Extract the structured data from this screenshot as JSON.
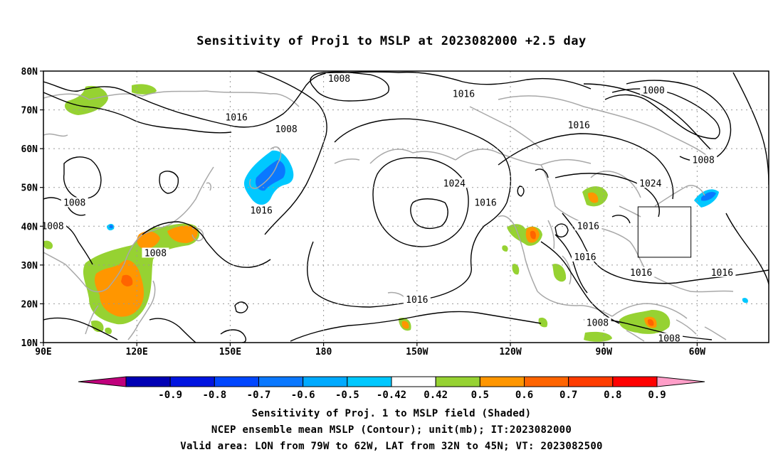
{
  "title": "Sensitivity of Proj1 to MSLP at 2023082000 +2.5 day",
  "map": {
    "lat_labels": [
      "10N",
      "20N",
      "30N",
      "40N",
      "50N",
      "60N",
      "70N",
      "80N"
    ],
    "lon_labels": [
      "90E",
      "120E",
      "150E",
      "180",
      "150W",
      "120W",
      "90W",
      "60W"
    ],
    "lon_range": [
      90,
      323
    ],
    "lat_range": [
      10,
      80
    ],
    "grid": "dotted"
  },
  "contour_labels": [
    {
      "text": "1008",
      "lon": 100,
      "lat": 46,
      "label_id": "l1"
    },
    {
      "text": "1016",
      "lon": 152,
      "lat": 68,
      "label_id": "l2"
    },
    {
      "text": "1008",
      "lon": 168,
      "lat": 65,
      "label_id": "l3"
    },
    {
      "text": "1008",
      "lon": 185,
      "lat": 78,
      "label_id": "l4"
    },
    {
      "text": "1016",
      "lon": 225,
      "lat": 74,
      "label_id": "l5"
    },
    {
      "text": "1016",
      "lon": 262,
      "lat": 66,
      "label_id": "l6"
    },
    {
      "text": "1000",
      "lon": 286,
      "lat": 75,
      "label_id": "l7"
    },
    {
      "text": "1008",
      "lon": 302,
      "lat": 57,
      "label_id": "l8"
    },
    {
      "text": "1024",
      "lon": 222,
      "lat": 51,
      "label_id": "l9"
    },
    {
      "text": "1016",
      "lon": 232,
      "lat": 46,
      "label_id": "l10"
    },
    {
      "text": "1024",
      "lon": 285,
      "lat": 51,
      "label_id": "l11"
    },
    {
      "text": "1016",
      "lon": 265,
      "lat": 40,
      "label_id": "l12"
    },
    {
      "text": "1016",
      "lon": 264,
      "lat": 32,
      "label_id": "l13"
    },
    {
      "text": "1016",
      "lon": 282,
      "lat": 28,
      "label_id": "l14"
    },
    {
      "text": "1016",
      "lon": 308,
      "lat": 28,
      "label_id": "l15"
    },
    {
      "text": "1016",
      "lon": 160,
      "lat": 44,
      "label_id": "l16"
    },
    {
      "text": "1016",
      "lon": 210,
      "lat": 21,
      "label_id": "l17"
    },
    {
      "text": "1008",
      "lon": 93,
      "lat": 40,
      "label_id": "l18"
    },
    {
      "text": "1008",
      "lon": 126,
      "lat": 33,
      "label_id": "l19"
    },
    {
      "text": "1008",
      "lon": 268,
      "lat": 15,
      "label_id": "l20"
    },
    {
      "text": "1008",
      "lon": 291,
      "lat": 11,
      "label_id": "l21"
    }
  ],
  "valid_area": {
    "lon": [
      -79,
      -62
    ],
    "lat": [
      32,
      45
    ]
  },
  "colorbar": {
    "labels": [
      "-0.9",
      "-0.8",
      "-0.7",
      "-0.6",
      "-0.5",
      "-0.42",
      "0.42",
      "0.5",
      "0.6",
      "0.7",
      "0.8",
      "0.9"
    ],
    "colors": [
      "#c0007c",
      "#0000b4",
      "#0014e0",
      "#0046ff",
      "#0a78ff",
      "#00aaff",
      "#00c8ff",
      "#ffffff",
      "#96d232",
      "#ff9600",
      "#ff6400",
      "#ff3c00",
      "#ff0000",
      "#ff9ec8"
    ]
  },
  "footer": {
    "line1": "Sensitivity of Proj. 1 to MSLP field (Shaded)",
    "line2": "NCEP ensemble mean MSLP (Contour); unit(mb); IT:2023082000",
    "line3": "Valid area: LON from 79W to 62W, LAT from 32N to 45N; VT: 2023082500"
  }
}
